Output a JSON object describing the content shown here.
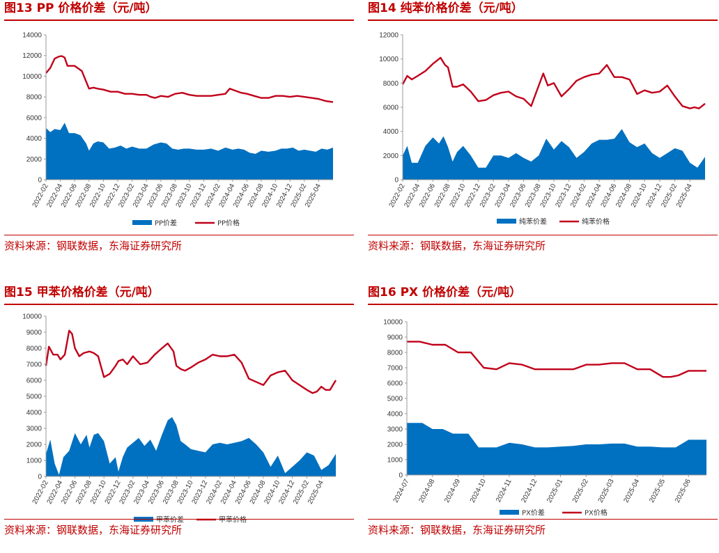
{
  "source_text": "资料来源：钢联数据，东海证券研究所",
  "colors": {
    "spread": "#0070c0",
    "price": "#c0001a",
    "accent": "#c00000"
  },
  "chart_data": [
    {
      "type": "area+line",
      "title": "图13  PP 价格价差（元/吨）",
      "ylim": [
        0,
        14000
      ],
      "yticks": [
        0,
        2000,
        4000,
        6000,
        8000,
        10000,
        12000,
        14000
      ],
      "xticks": [
        "2022-02",
        "2022-04",
        "2022-06",
        "2022-08",
        "2022-10",
        "2022-12",
        "2023-02",
        "2023-04",
        "2023-06",
        "2023-08",
        "2023-10",
        "2023-12",
        "2024-02",
        "2024-04",
        "2024-06",
        "2024-08",
        "2024-10",
        "2024-12",
        "2025-02",
        "2025-04"
      ],
      "x_range": [
        0,
        20
      ],
      "series": [
        {
          "name": "PP价差",
          "kind": "area",
          "x": [
            0,
            0.3,
            0.6,
            1,
            1.3,
            1.6,
            2,
            2.4,
            2.8,
            3,
            3.3,
            3.6,
            4,
            4.4,
            4.8,
            5.2,
            5.6,
            6,
            6.5,
            7,
            7.5,
            8,
            8.4,
            8.8,
            9.2,
            9.6,
            10,
            10.5,
            11,
            11.5,
            12,
            12.5,
            13,
            13.4,
            13.8,
            14.2,
            14.6,
            15,
            15.5,
            16,
            16.4,
            16.8,
            17.2,
            17.6,
            18,
            18.4,
            18.8,
            19.2,
            19.6,
            20
          ],
          "y": [
            5000,
            4600,
            4900,
            4800,
            5500,
            4500,
            4500,
            4300,
            3500,
            2800,
            3500,
            3700,
            3600,
            3000,
            3100,
            3300,
            3000,
            3200,
            3000,
            3000,
            3400,
            3600,
            3500,
            3000,
            2900,
            3000,
            3000,
            2900,
            2900,
            3000,
            2800,
            3100,
            2900,
            3000,
            2900,
            2600,
            2500,
            2800,
            2700,
            2800,
            3000,
            3000,
            3100,
            2800,
            2900,
            2800,
            2700,
            3000,
            2900,
            3100
          ]
        },
        {
          "name": "PP价格",
          "kind": "line",
          "x": [
            0,
            0.3,
            0.6,
            0.9,
            1.1,
            1.3,
            1.5,
            1.7,
            2,
            2.5,
            3,
            3.3,
            3.6,
            4,
            4.5,
            5,
            5.5,
            6,
            6.5,
            7,
            7.3,
            7.6,
            8,
            8.5,
            9,
            9.5,
            10,
            10.5,
            11,
            11.5,
            12,
            12.5,
            12.8,
            13.2,
            13.6,
            14,
            14.5,
            15,
            15.5,
            16,
            16.5,
            17,
            17.5,
            18,
            18.5,
            19,
            19.5,
            20
          ],
          "y": [
            10300,
            10800,
            11700,
            11900,
            11950,
            11800,
            11000,
            11000,
            11000,
            10500,
            8800,
            8900,
            8800,
            8700,
            8500,
            8500,
            8300,
            8300,
            8200,
            8200,
            8000,
            7900,
            8100,
            8000,
            8300,
            8400,
            8200,
            8100,
            8100,
            8100,
            8200,
            8300,
            8800,
            8600,
            8400,
            8300,
            8100,
            7900,
            7900,
            8100,
            8100,
            8000,
            8100,
            8000,
            7900,
            7800,
            7600,
            7500
          ]
        }
      ]
    },
    {
      "type": "area+line",
      "title": "图14  纯苯价格价差（元/吨）",
      "ylim": [
        0,
        12000
      ],
      "yticks": [
        0,
        2000,
        4000,
        6000,
        8000,
        10000,
        12000
      ],
      "xticks": [
        "2022-02",
        "2022-04",
        "2022-06",
        "2022-08",
        "2022-10",
        "2022-12",
        "2023-02",
        "2023-04",
        "2023-06",
        "2023-08",
        "2023-10",
        "2023-12",
        "2024-02",
        "2024-04",
        "2024-06",
        "2024-08",
        "2024-10",
        "2024-12",
        "2025-02",
        "2025-04"
      ],
      "x_range": [
        0,
        20
      ],
      "series": [
        {
          "name": "纯苯价差",
          "kind": "area",
          "x": [
            0,
            0.3,
            0.6,
            1,
            1.5,
            2,
            2.4,
            2.7,
            3,
            3.3,
            3.6,
            4,
            4.5,
            5,
            5.5,
            6,
            6.5,
            7,
            7.5,
            8,
            8.5,
            9,
            9.5,
            10,
            10.5,
            11,
            11.5,
            12,
            12.5,
            13,
            13.5,
            14,
            14.5,
            15,
            15.5,
            16,
            16.5,
            17,
            17.5,
            18,
            18.5,
            19,
            19.5,
            20
          ],
          "y": [
            2000,
            2800,
            1400,
            1400,
            2800,
            3500,
            3000,
            3600,
            2700,
            1500,
            2300,
            2800,
            2000,
            1000,
            1000,
            2000,
            2000,
            1800,
            2200,
            1800,
            1500,
            2000,
            3400,
            2500,
            3200,
            2700,
            1800,
            2300,
            3000,
            3300,
            3300,
            3400,
            4200,
            3100,
            2700,
            3000,
            2200,
            1800,
            2200,
            2600,
            2400,
            1400,
            1000,
            1900
          ]
        },
        {
          "name": "纯苯价格",
          "kind": "line",
          "x": [
            0,
            0.3,
            0.6,
            1,
            1.5,
            2,
            2.5,
            2.8,
            3,
            3.3,
            3.6,
            4,
            4.5,
            5,
            5.5,
            6,
            6.5,
            7,
            7.5,
            8,
            8.5,
            9,
            9.3,
            9.6,
            10,
            10.5,
            11,
            11.5,
            12,
            12.5,
            13,
            13.5,
            14,
            14.5,
            15,
            15.5,
            16,
            16.5,
            17,
            17.5,
            18,
            18.5,
            19,
            19.3,
            19.6,
            20
          ],
          "y": [
            7900,
            8600,
            8300,
            8600,
            9000,
            9600,
            10100,
            9500,
            9300,
            7700,
            7700,
            7900,
            7300,
            6500,
            6600,
            7000,
            7200,
            7300,
            6900,
            6700,
            6100,
            7800,
            8800,
            7800,
            8000,
            6900,
            7500,
            8200,
            8500,
            8700,
            8800,
            9500,
            8500,
            8500,
            8300,
            7100,
            7400,
            7200,
            7300,
            7800,
            6900,
            6100,
            5900,
            6000,
            5900,
            6300
          ]
        }
      ]
    },
    {
      "type": "area+line",
      "title": "图15  甲苯价格价差（元/吨）",
      "ylim": [
        0,
        10000
      ],
      "yticks": [
        0,
        1000,
        2000,
        3000,
        4000,
        5000,
        6000,
        7000,
        8000,
        9000,
        10000
      ],
      "xticks": [
        "2022-02",
        "2022-04",
        "2022-06",
        "2022-08",
        "2022-10",
        "2022-12",
        "2023-02",
        "2023-04",
        "2023-06",
        "2023-08",
        "2023-10",
        "2023-12",
        "2024-02",
        "2024-04",
        "2024-06",
        "2024-08",
        "2024-10",
        "2024-12",
        "2025-02",
        "2025-04"
      ],
      "x_range": [
        0,
        20
      ],
      "series": [
        {
          "name": "甲苯价差",
          "kind": "area",
          "x": [
            0,
            0.3,
            0.6,
            0.9,
            1.2,
            1.6,
            2,
            2.4,
            2.8,
            3,
            3.3,
            3.6,
            4,
            4.4,
            4.8,
            5,
            5.3,
            5.6,
            6,
            6.4,
            6.8,
            7.2,
            7.6,
            8,
            8.4,
            8.7,
            9,
            9.3,
            9.6,
            10,
            10.5,
            11,
            11.5,
            12,
            12.5,
            13,
            13.5,
            14,
            14.5,
            15,
            15.5,
            16,
            16.5,
            17,
            17.5,
            18,
            18.5,
            19,
            19.5,
            20
          ],
          "y": [
            1400,
            2300,
            800,
            100,
            1200,
            1600,
            2700,
            2000,
            2600,
            1800,
            2600,
            2700,
            2200,
            800,
            1200,
            300,
            1200,
            1800,
            2100,
            2400,
            1900,
            2300,
            1600,
            2600,
            3500,
            3700,
            3200,
            2200,
            2000,
            1700,
            1600,
            1500,
            2000,
            2100,
            2000,
            2100,
            2200,
            2400,
            2000,
            1500,
            600,
            1300,
            200,
            600,
            1000,
            1500,
            1300,
            400,
            700,
            1400
          ]
        },
        {
          "name": "甲苯价格",
          "kind": "line",
          "x": [
            0,
            0.2,
            0.5,
            0.8,
            1,
            1.3,
            1.6,
            1.8,
            2,
            2.3,
            2.6,
            3,
            3.3,
            3.6,
            4,
            4.4,
            4.8,
            5,
            5.3,
            5.6,
            6,
            6.5,
            7,
            7.5,
            8,
            8.4,
            8.8,
            9,
            9.3,
            9.6,
            10,
            10.5,
            11,
            11.5,
            12,
            12.5,
            13,
            13.5,
            14,
            14.5,
            15,
            15.5,
            16,
            16.5,
            17,
            17.5,
            18,
            18.4,
            18.7,
            19,
            19.3,
            19.6,
            20
          ],
          "y": [
            6900,
            8100,
            7600,
            7600,
            7300,
            7600,
            9100,
            8900,
            8000,
            7500,
            7700,
            7800,
            7700,
            7500,
            6200,
            6400,
            6900,
            7200,
            7300,
            7000,
            7500,
            7000,
            7100,
            7600,
            8000,
            8300,
            7800,
            6900,
            6700,
            6600,
            6800,
            7100,
            7300,
            7600,
            7500,
            7500,
            7600,
            7100,
            6100,
            5900,
            5700,
            6300,
            6500,
            6600,
            6000,
            5700,
            5400,
            5200,
            5300,
            5600,
            5400,
            5400,
            6000
          ]
        }
      ]
    },
    {
      "type": "area+line",
      "title": "图16  PX 价格价差（元/吨）",
      "ylim": [
        0,
        10000
      ],
      "yticks": [
        0,
        1000,
        2000,
        3000,
        4000,
        5000,
        6000,
        7000,
        8000,
        9000,
        10000
      ],
      "xticks": [
        "2024-07",
        "2024-08",
        "2024-09",
        "2024-10",
        "2024-11",
        "2024-12",
        "2025-01",
        "2025-02",
        "2025-03",
        "2025-04",
        "2025-05",
        "2025-06"
      ],
      "x_range": [
        0,
        11.7
      ],
      "series": [
        {
          "name": "PX价差",
          "kind": "area",
          "x": [
            0,
            0.6,
            1,
            1.4,
            1.8,
            2,
            2.4,
            2.8,
            3,
            3.5,
            4,
            4.5,
            5,
            5.5,
            6,
            6.5,
            7,
            7.5,
            8,
            8.5,
            9,
            9.5,
            10,
            10.5,
            11,
            11.7
          ],
          "y": [
            3400,
            3400,
            3000,
            3000,
            2700,
            2700,
            2700,
            1800,
            1800,
            1800,
            2100,
            2000,
            1800,
            1800,
            1850,
            1900,
            2000,
            2000,
            2050,
            2050,
            1850,
            1850,
            1800,
            1800,
            2300,
            2300
          ]
        },
        {
          "name": "PX价格",
          "kind": "line",
          "x": [
            0,
            0.5,
            1,
            1.5,
            2,
            2.5,
            3,
            3.5,
            4,
            4.5,
            5,
            5.5,
            6,
            6.5,
            7,
            7.5,
            8,
            8.5,
            9,
            9.5,
            10,
            10.3,
            10.6,
            11,
            11.7
          ],
          "y": [
            8700,
            8700,
            8500,
            8500,
            8000,
            8000,
            7000,
            6900,
            7300,
            7200,
            6900,
            6900,
            6900,
            6900,
            7200,
            7200,
            7300,
            7300,
            6900,
            6900,
            6400,
            6400,
            6500,
            6800,
            6800
          ]
        }
      ]
    }
  ]
}
